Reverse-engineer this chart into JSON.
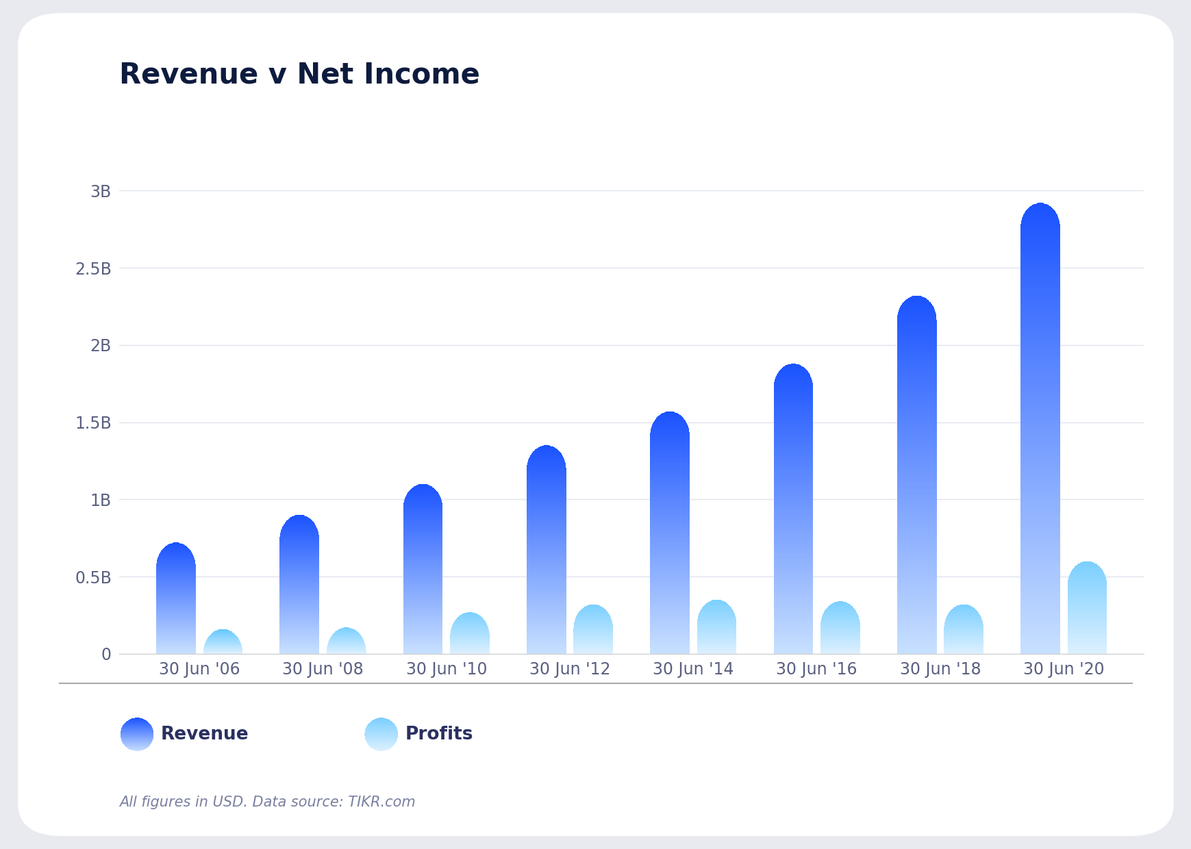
{
  "title": "Revenue v Net Income",
  "categories": [
    "30 Jun '06",
    "30 Jun '08",
    "30 Jun '10",
    "30 Jun '12",
    "30 Jun '14",
    "30 Jun '16",
    "30 Jun '18",
    "30 Jun '20"
  ],
  "revenue": [
    0.72,
    0.9,
    1.1,
    1.35,
    1.57,
    1.88,
    2.32,
    2.92
  ],
  "profits": [
    0.13,
    0.17,
    0.27,
    0.32,
    0.35,
    0.34,
    0.32,
    0.6
  ],
  "ylim": [
    0,
    3.3
  ],
  "yticks": [
    0,
    0.5,
    1.0,
    1.5,
    2.0,
    2.5,
    3.0
  ],
  "ytick_labels": [
    "0",
    "0.5B",
    "1B",
    "1.5B",
    "2B",
    "2.5B",
    "3B"
  ],
  "revenue_color_top": "#1a52ff",
  "revenue_color_bottom": "#c8e0ff",
  "profits_color_top": "#7acfff",
  "profits_color_bottom": "#ddf0ff",
  "outer_bg": "#e8eaf0",
  "card_bg": "#ffffff",
  "title_color": "#0d1b3e",
  "axis_label_color": "#5a6080",
  "grid_color": "#e0e4ee",
  "footnote": "All figures in USD. Data source: TIKR.com",
  "legend_revenue": "Revenue",
  "legend_profits": "Profits",
  "bar_width": 0.32,
  "bar_gap": 0.06,
  "n_gradient_steps": 200
}
